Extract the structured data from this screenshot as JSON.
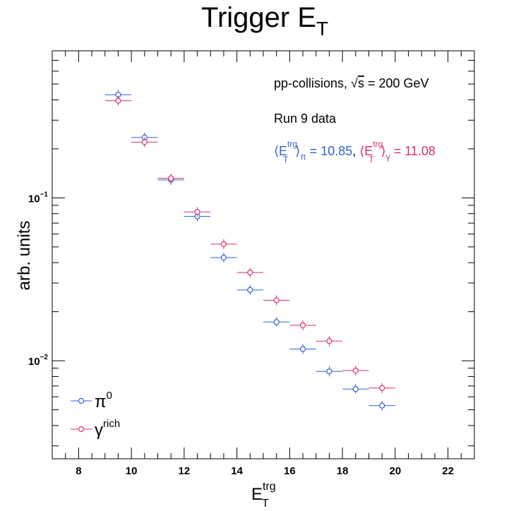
{
  "chart_data": {
    "type": "scatter",
    "title": "Trigger E",
    "title_sub": "T",
    "xlabel": "E",
    "xlabel_sup": "trg",
    "xlabel_sub": "T",
    "ylabel": "arb. units",
    "xlim": [
      7,
      23
    ],
    "ylim": [
      0.0025,
      0.8
    ],
    "y_scale": "log",
    "grid": false,
    "x_ticks": [
      "8",
      "10",
      "12",
      "14",
      "16",
      "18",
      "20",
      "22"
    ],
    "y_ticks": [
      {
        "base": "10",
        "exp": "−1",
        "value": 0.1
      },
      {
        "base": "10",
        "exp": "−2",
        "value": 0.01
      }
    ],
    "legend_position": "bottom-left",
    "annotations": {
      "line1": "pp-collisions, ",
      "line1_s": "s",
      "line1_rest": " = 200 GeV",
      "line2": "Run 9 data",
      "pi_avg_prefix": "⟨E",
      "pi_avg_sup": "trg",
      "pi_avg_sub": "T",
      "pi_avg_close": "⟩",
      "pi_avg_sub2": "π",
      "pi_avg_value": " = 10.85",
      "separator": ", ",
      "gamma_avg_prefix": "⟨E",
      "gamma_avg_sup": "trg",
      "gamma_avg_sub": "T",
      "gamma_avg_close": "⟩",
      "gamma_avg_sub2": "γ",
      "gamma_avg_value": " = 11.08"
    },
    "series": [
      {
        "name": "π",
        "name_sup": "0",
        "color": "#3060d8",
        "x": [
          9.5,
          10.5,
          11.5,
          12.5,
          13.5,
          14.5,
          15.5,
          16.5,
          17.5,
          18.5,
          19.5
        ],
        "values": [
          0.43,
          0.235,
          0.129,
          0.077,
          0.043,
          0.0272,
          0.0173,
          0.0118,
          0.0086,
          0.0067,
          0.0053
        ],
        "xerr": 0.5
      },
      {
        "name": "γ",
        "name_sup": "rich",
        "color": "#d8306a",
        "x": [
          9.5,
          10.5,
          11.5,
          12.5,
          13.5,
          14.5,
          15.5,
          16.5,
          17.5,
          18.5,
          19.5
        ],
        "values": [
          0.395,
          0.22,
          0.132,
          0.082,
          0.052,
          0.0348,
          0.0235,
          0.0165,
          0.0132,
          0.0087,
          0.0068
        ],
        "xerr": 0.5
      }
    ]
  }
}
